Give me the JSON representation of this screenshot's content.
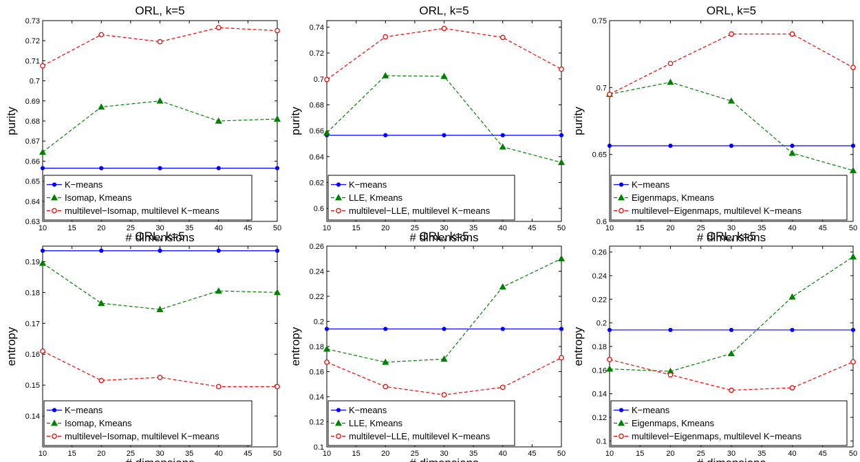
{
  "chart_data": [
    {
      "type": "line",
      "title": "ORL, k=5",
      "xlabel": "# dimensions",
      "ylabel": "purity",
      "x": [
        10,
        20,
        30,
        40,
        50
      ],
      "xlim": [
        10,
        50
      ],
      "xticks": [
        10,
        15,
        20,
        25,
        30,
        35,
        40,
        45,
        50
      ],
      "ylim": [
        0.63,
        0.73
      ],
      "yticks": [
        0.63,
        0.64,
        0.65,
        0.66,
        0.67,
        0.68,
        0.69,
        0.7,
        0.71,
        0.72,
        0.73
      ],
      "ytick_labels": [
        "0.63",
        "0.64",
        "0.65",
        "0.66",
        "0.67",
        "0.68",
        "0.69",
        "0.7",
        "0.71",
        "0.72",
        "0.73"
      ],
      "legend_position": "lower",
      "series": [
        {
          "name": "K−means",
          "values": [
            0.6565,
            0.6565,
            0.6565,
            0.6565,
            0.6565
          ],
          "color": "#0000ff",
          "dash": "solid",
          "marker": "dot"
        },
        {
          "name": "Isomap, Kmeans",
          "values": [
            0.6645,
            0.687,
            0.69,
            0.68,
            0.681
          ],
          "color": "#008000",
          "dash": "dashed",
          "marker": "triangle"
        },
        {
          "name": "multilevel−Isomap, multilevel K−means",
          "values": [
            0.7075,
            0.723,
            0.7195,
            0.7265,
            0.725
          ],
          "color": "#ff0000",
          "dash": "dashed",
          "marker": "circle"
        }
      ]
    },
    {
      "type": "line",
      "title": "ORL, k=5",
      "xlabel": "# dimensions",
      "ylabel": "purity",
      "x": [
        10,
        20,
        30,
        40,
        50
      ],
      "xlim": [
        10,
        50
      ],
      "xticks": [
        10,
        15,
        20,
        25,
        30,
        35,
        40,
        45,
        50
      ],
      "ylim": [
        0.59,
        0.745
      ],
      "yticks": [
        0.6,
        0.62,
        0.64,
        0.66,
        0.68,
        0.7,
        0.72,
        0.74
      ],
      "ytick_labels": [
        "0.6",
        "0.62",
        "0.64",
        "0.66",
        "0.68",
        "0.7",
        "0.72",
        "0.74"
      ],
      "legend_position": "lower",
      "series": [
        {
          "name": "K−means",
          "values": [
            0.6565,
            0.6565,
            0.6565,
            0.6565,
            0.6565
          ],
          "color": "#0000ff",
          "dash": "solid",
          "marker": "dot"
        },
        {
          "name": "LLE, Kmeans",
          "values": [
            0.6585,
            0.7025,
            0.702,
            0.6475,
            0.6355
          ],
          "color": "#008000",
          "dash": "dashed",
          "marker": "triangle"
        },
        {
          "name": "multilevel−LLE, multilevel K−means",
          "values": [
            0.6995,
            0.7325,
            0.739,
            0.732,
            0.7075
          ],
          "color": "#ff0000",
          "dash": "dashed",
          "marker": "circle"
        }
      ]
    },
    {
      "type": "line",
      "title": "ORL, k=5",
      "xlabel": "# dimensions",
      "ylabel": "purity",
      "x": [
        10,
        20,
        30,
        40,
        50
      ],
      "xlim": [
        10,
        50
      ],
      "xticks": [
        10,
        15,
        20,
        25,
        30,
        35,
        40,
        45,
        50
      ],
      "ylim": [
        0.6,
        0.75
      ],
      "yticks": [
        0.6,
        0.65,
        0.7,
        0.75
      ],
      "ytick_labels": [
        "0.6",
        "0.65",
        "0.7",
        "0.75"
      ],
      "legend_position": "lower",
      "series": [
        {
          "name": "K−means",
          "values": [
            0.6565,
            0.6565,
            0.6565,
            0.6565,
            0.6565
          ],
          "color": "#0000ff",
          "dash": "solid",
          "marker": "dot"
        },
        {
          "name": "Eigenmaps, Kmeans",
          "values": [
            0.695,
            0.704,
            0.69,
            0.651,
            0.638
          ],
          "color": "#008000",
          "dash": "dashed",
          "marker": "triangle"
        },
        {
          "name": "multilevel−Eigenmaps, multilevel K−means",
          "values": [
            0.695,
            0.718,
            0.74,
            0.74,
            0.715
          ],
          "color": "#ff0000",
          "dash": "dashed",
          "marker": "circle"
        }
      ]
    },
    {
      "type": "line",
      "title": "ORL, k=5",
      "xlabel": "# dimensions",
      "ylabel": "entropy",
      "x": [
        10,
        20,
        30,
        40,
        50
      ],
      "xlim": [
        10,
        50
      ],
      "xticks": [
        10,
        15,
        20,
        25,
        30,
        35,
        40,
        45,
        50
      ],
      "ylim": [
        0.13,
        0.195
      ],
      "yticks": [
        0.14,
        0.15,
        0.16,
        0.17,
        0.18,
        0.19
      ],
      "ytick_labels": [
        "0.14",
        "0.15",
        "0.16",
        "0.17",
        "0.18",
        "0.19"
      ],
      "legend_position": "lower",
      "series": [
        {
          "name": "K−means",
          "values": [
            0.1935,
            0.1935,
            0.1935,
            0.1935,
            0.1935
          ],
          "color": "#0000ff",
          "dash": "solid",
          "marker": "dot"
        },
        {
          "name": "Isomap, Kmeans",
          "values": [
            0.1895,
            0.1765,
            0.1745,
            0.1805,
            0.18
          ],
          "color": "#008000",
          "dash": "dashed",
          "marker": "triangle"
        },
        {
          "name": "multilevel−Isomap, multilevel K−means",
          "values": [
            0.161,
            0.1515,
            0.1525,
            0.1495,
            0.1495
          ],
          "color": "#ff0000",
          "dash": "dashed",
          "marker": "circle"
        }
      ]
    },
    {
      "type": "line",
      "title": "ORL, k=5",
      "xlabel": "# dimensions",
      "ylabel": "entropy",
      "x": [
        10,
        20,
        30,
        40,
        50
      ],
      "xlim": [
        10,
        50
      ],
      "xticks": [
        10,
        15,
        20,
        25,
        30,
        35,
        40,
        45,
        50
      ],
      "ylim": [
        0.1,
        0.26
      ],
      "yticks": [
        0.1,
        0.12,
        0.14,
        0.16,
        0.18,
        0.2,
        0.22,
        0.24,
        0.26
      ],
      "ytick_labels": [
        "0.1",
        "0.12",
        "0.14",
        "0.16",
        "0.18",
        "0.2",
        "0.22",
        "0.24",
        "0.26"
      ],
      "legend_position": "lower",
      "series": [
        {
          "name": "K−means",
          "values": [
            0.194,
            0.194,
            0.194,
            0.194,
            0.194
          ],
          "color": "#0000ff",
          "dash": "solid",
          "marker": "dot"
        },
        {
          "name": "LLE, Kmeans",
          "values": [
            0.178,
            0.1675,
            0.17,
            0.2275,
            0.25
          ],
          "color": "#008000",
          "dash": "dashed",
          "marker": "triangle"
        },
        {
          "name": "multilevel−LLE, multilevel K−means",
          "values": [
            0.1675,
            0.148,
            0.1415,
            0.1475,
            0.171
          ],
          "color": "#ff0000",
          "dash": "dashed",
          "marker": "circle"
        }
      ]
    },
    {
      "type": "line",
      "title": "ORL, k=5",
      "xlabel": "# dimensions",
      "ylabel": "entropy",
      "x": [
        10,
        20,
        30,
        40,
        50
      ],
      "xlim": [
        10,
        50
      ],
      "xticks": [
        10,
        15,
        20,
        25,
        30,
        35,
        40,
        45,
        50
      ],
      "ylim": [
        0.095,
        0.265
      ],
      "yticks": [
        0.1,
        0.12,
        0.14,
        0.16,
        0.18,
        0.2,
        0.22,
        0.24,
        0.26
      ],
      "ytick_labels": [
        "0.1",
        "0.12",
        "0.14",
        "0.16",
        "0.18",
        "0.2",
        "0.22",
        "0.24",
        "0.26"
      ],
      "legend_position": "lower",
      "series": [
        {
          "name": "K−means",
          "values": [
            0.194,
            0.194,
            0.194,
            0.194,
            0.194
          ],
          "color": "#0000ff",
          "dash": "solid",
          "marker": "dot"
        },
        {
          "name": "Eigenmaps, Kmeans",
          "values": [
            0.161,
            0.159,
            0.174,
            0.222,
            0.256
          ],
          "color": "#008000",
          "dash": "dashed",
          "marker": "triangle"
        },
        {
          "name": "multilevel−Eigenmaps, multilevel K−means",
          "values": [
            0.169,
            0.156,
            0.143,
            0.145,
            0.167
          ],
          "color": "#ff0000",
          "dash": "dashed",
          "marker": "circle"
        }
      ]
    }
  ]
}
